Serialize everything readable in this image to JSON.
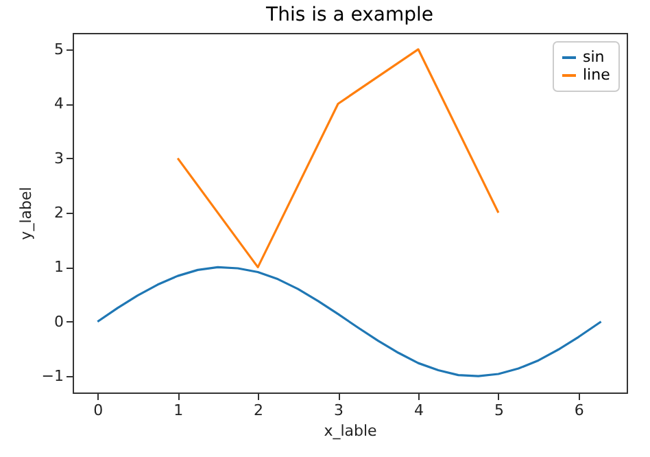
{
  "chart_data": {
    "type": "line",
    "title": "This is a example",
    "xlabel": "x_lable",
    "ylabel": "y_label",
    "series": [
      {
        "name": "sin",
        "color": "#1f77b4",
        "x": [
          0,
          0.25,
          0.5,
          0.75,
          1,
          1.25,
          1.5,
          1.75,
          2,
          2.25,
          2.5,
          2.75,
          3,
          3.25,
          3.5,
          3.75,
          4,
          4.25,
          4.5,
          4.75,
          5,
          5.25,
          5.5,
          5.75,
          6,
          6.28
        ],
        "values": [
          0,
          0.25,
          0.48,
          0.68,
          0.84,
          0.95,
          1.0,
          0.98,
          0.91,
          0.78,
          0.6,
          0.38,
          0.14,
          -0.11,
          -0.35,
          -0.57,
          -0.76,
          -0.89,
          -0.98,
          -1.0,
          -0.96,
          -0.86,
          -0.71,
          -0.51,
          -0.28,
          0
        ]
      },
      {
        "name": "line",
        "color": "#ff7f0e",
        "x": [
          1,
          2,
          3,
          4,
          5
        ],
        "values": [
          3,
          1,
          4,
          5,
          2
        ]
      }
    ],
    "xlim": [
      -0.31,
      6.6
    ],
    "xticks": [
      0,
      1,
      2,
      3,
      4,
      5,
      6
    ],
    "ylim": [
      -1.3,
      5.3
    ],
    "yticks": [
      -1,
      0,
      1,
      2,
      3,
      4,
      5
    ],
    "legend": "top right",
    "grid": false,
    "marker": "none",
    "line_style": "solid"
  }
}
